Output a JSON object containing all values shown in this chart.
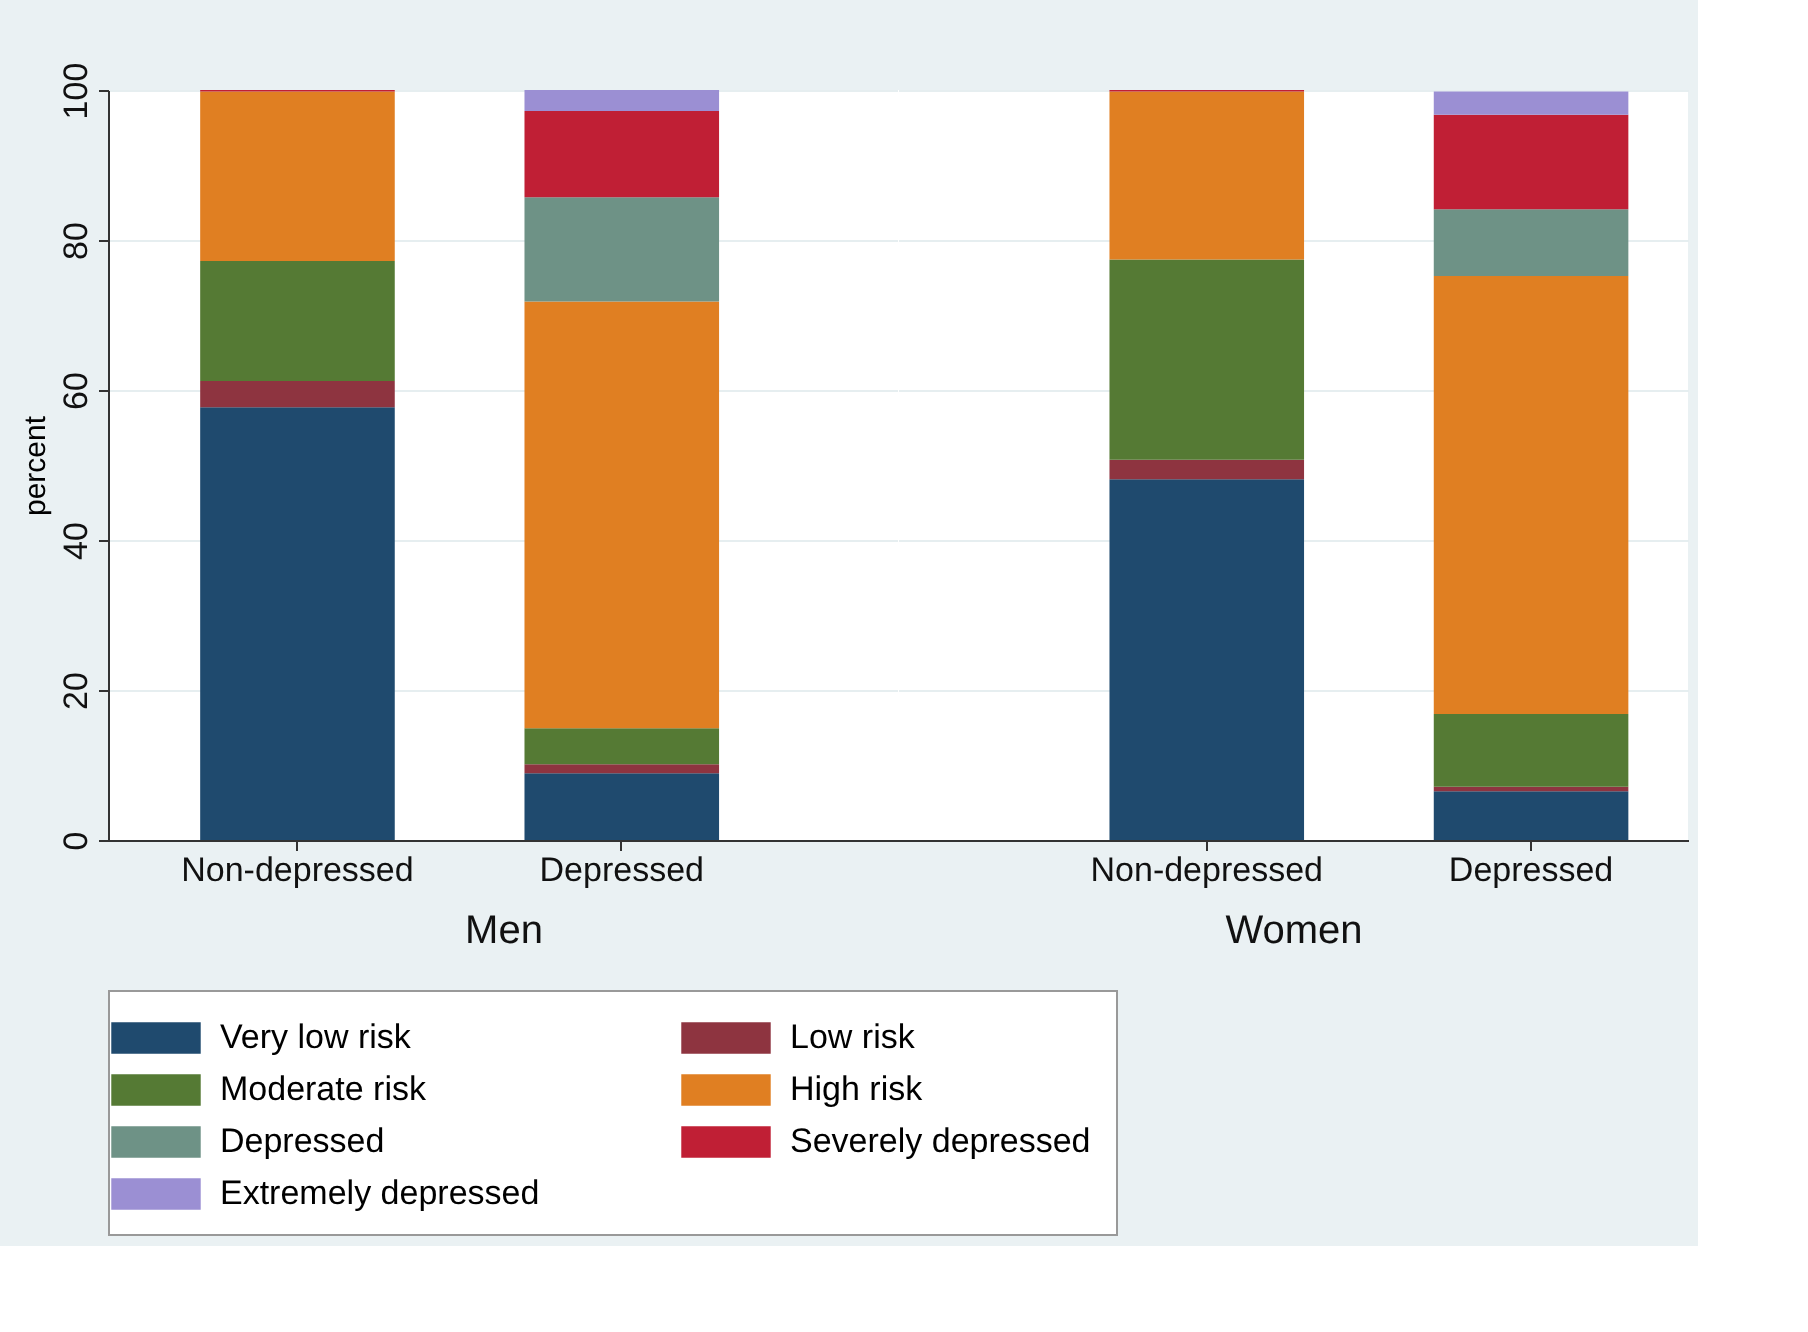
{
  "chart_data": [
    {
      "type": "bar",
      "stacked": true,
      "xlabel": "Men",
      "ylabel": "percent",
      "categories": [
        "Non-depressed",
        "Depressed"
      ],
      "ylim": [
        0,
        100
      ],
      "yticks": [
        0,
        20,
        40,
        60,
        80,
        100
      ],
      "grid": "y",
      "legend": "bottom",
      "series": [
        {
          "name": "Very low risk",
          "color": "#1f4a6e",
          "values": [
            57.7,
            8.9
          ]
        },
        {
          "name": "Low risk",
          "color": "#8e3440",
          "values": [
            3.5,
            1.2
          ]
        },
        {
          "name": "Moderate risk",
          "color": "#557a34",
          "values": [
            16.0,
            4.8
          ]
        },
        {
          "name": "High risk",
          "color": "#e07f22",
          "values": [
            22.6,
            56.9
          ]
        },
        {
          "name": "Depressed",
          "color": "#6e9286",
          "values": [
            0,
            13.9
          ]
        },
        {
          "name": "Severely depressed",
          "color": "#c01f35",
          "values": [
            0.2,
            11.5
          ]
        },
        {
          "name": "Extremely depressed",
          "color": "#9b8fd3",
          "values": [
            0,
            2.8
          ]
        }
      ]
    },
    {
      "type": "bar",
      "stacked": true,
      "xlabel": "Women",
      "categories": [
        "Non-depressed",
        "Depressed"
      ],
      "ylim": [
        0,
        100
      ],
      "yticks": [
        0,
        20,
        40,
        60,
        80,
        100
      ],
      "grid": "y",
      "legend": "bottom",
      "tick_labels": "x",
      "series": [
        {
          "name": "Very low risk",
          "color": "#1f4a6e",
          "values": [
            48.1,
            6.5
          ]
        },
        {
          "name": "Low risk",
          "color": "#8e3440",
          "values": [
            2.6,
            0.6
          ]
        },
        {
          "name": "Moderate risk",
          "color": "#557a34",
          "values": [
            26.7,
            9.7
          ]
        },
        {
          "name": "High risk",
          "color": "#e07f22",
          "values": [
            22.4,
            58.4
          ]
        },
        {
          "name": "Depressed",
          "color": "#6e9286",
          "values": [
            0,
            8.9
          ]
        },
        {
          "name": "Severely depressed",
          "color": "#c01f35",
          "values": [
            0.2,
            12.6
          ]
        },
        {
          "name": "Extremely depressed",
          "color": "#9b8fd3",
          "values": [
            0,
            3.1
          ]
        }
      ]
    }
  ]
}
